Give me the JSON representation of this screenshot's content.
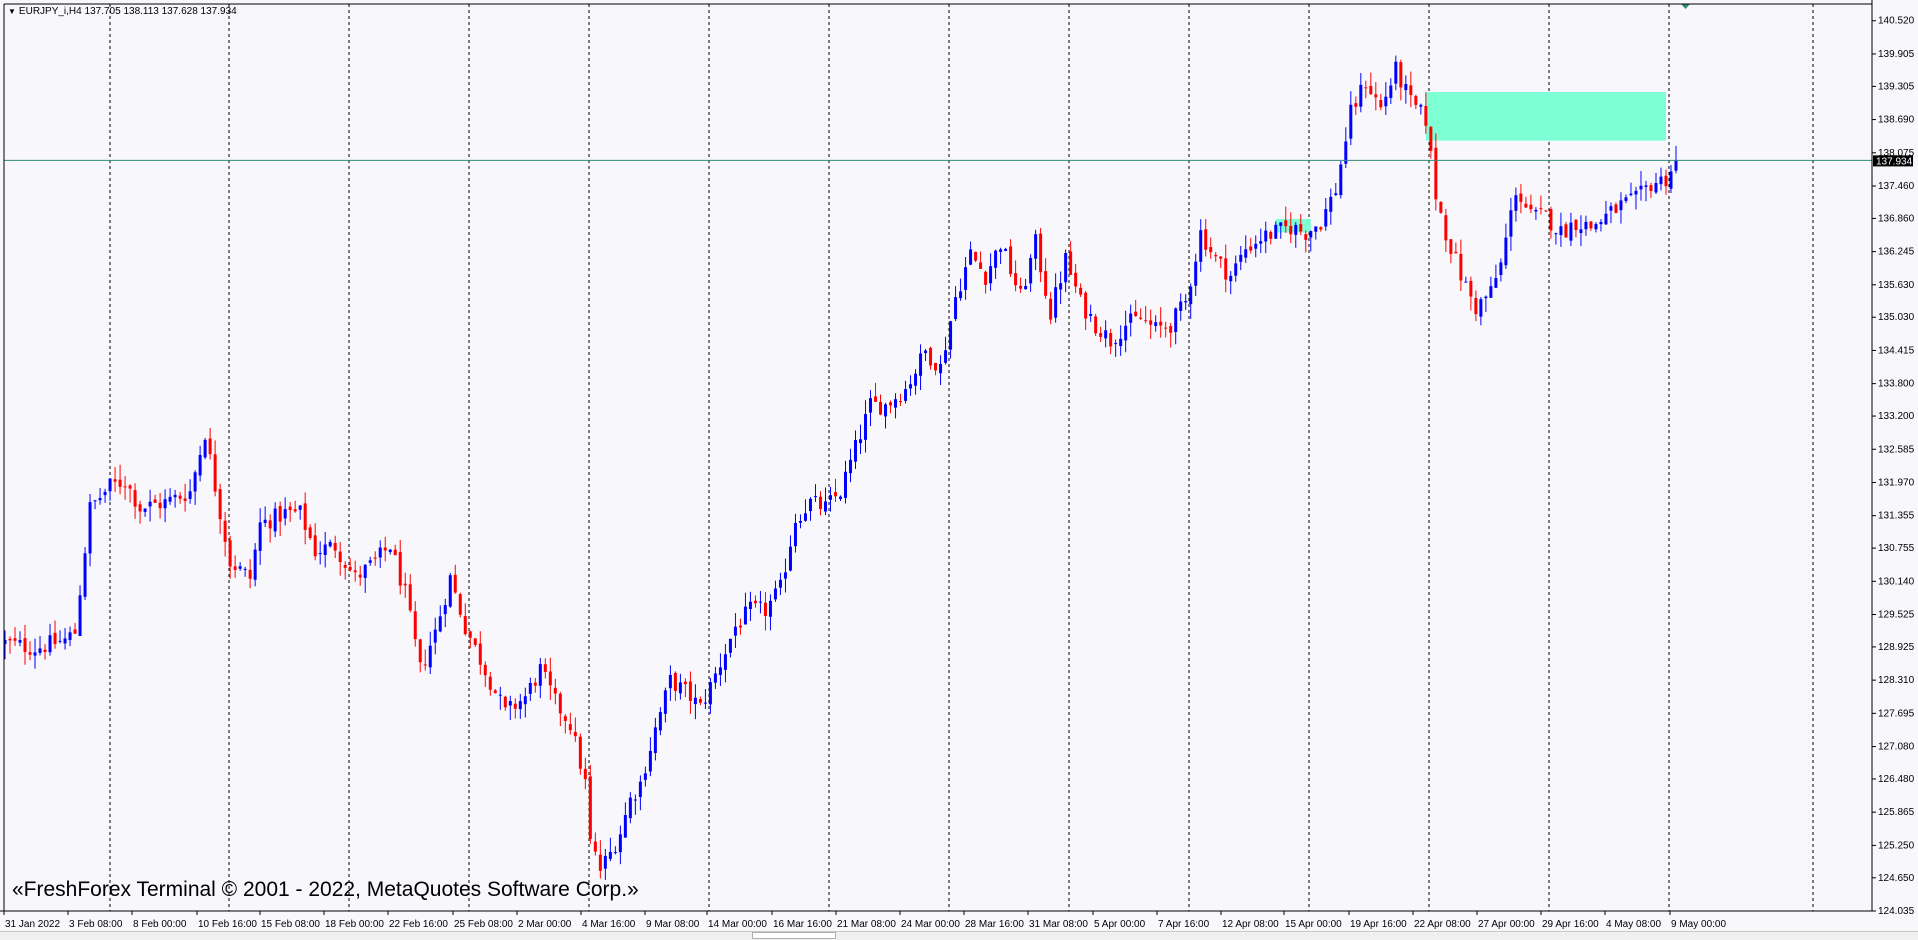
{
  "header": {
    "symbol": "EURJPY_i,H4",
    "ohlc": "137.705 138.113 137.628 137.934"
  },
  "copyright": "«FreshForex Terminal © 2001 - 2022, MetaQuotes Software Corp.»",
  "colors": {
    "background": "#f8f8fc",
    "bull": "#0000ff",
    "bear": "#ff0000",
    "grid": "#000000",
    "price_line": "#2e8b7a",
    "zone": "#7fffd4",
    "price_tag_bg": "#000000"
  },
  "chart_data": {
    "type": "candlestick",
    "symbol": "EURJPY_i",
    "timeframe": "H4",
    "current_price": "137.934",
    "ylim": [
      124.035,
      140.83
    ],
    "y_ticks": [
      "140.520",
      "139.905",
      "139.305",
      "138.690",
      "138.075",
      "137.460",
      "136.860",
      "136.245",
      "135.630",
      "135.030",
      "134.415",
      "133.800",
      "133.200",
      "132.585",
      "131.970",
      "131.355",
      "130.755",
      "130.140",
      "129.525",
      "128.925",
      "128.310",
      "127.695",
      "127.080",
      "126.480",
      "125.865",
      "125.250",
      "124.650",
      "124.035"
    ],
    "x_ticks": [
      "31 Jan 2022",
      "3 Feb 08:00",
      "8 Feb 00:00",
      "10 Feb 16:00",
      "15 Feb 08:00",
      "18 Feb 00:00",
      "22 Feb 16:00",
      "25 Feb 08:00",
      "2 Mar 00:00",
      "4 Mar 16:00",
      "9 Mar 08:00",
      "14 Mar 00:00",
      "16 Mar 16:00",
      "21 Mar 08:00",
      "24 Mar 00:00",
      "28 Mar 16:00",
      "31 Mar 08:00",
      "5 Apr 00:00",
      "7 Apr 16:00",
      "12 Apr 08:00",
      "15 Apr 00:00",
      "19 Apr 16:00",
      "22 Apr 08:00",
      "27 Apr 00:00",
      "29 Apr 16:00",
      "4 May 08:00",
      "9 May 00:00"
    ],
    "anchors": [
      [
        0,
        129.0
      ],
      [
        6,
        128.9
      ],
      [
        12,
        129.05
      ],
      [
        14,
        129.2
      ],
      [
        17,
        131.5
      ],
      [
        21,
        131.9
      ],
      [
        24,
        132.0
      ],
      [
        27,
        131.5
      ],
      [
        32,
        131.6
      ],
      [
        37,
        131.8
      ],
      [
        40,
        132.9
      ],
      [
        42,
        131.9
      ],
      [
        45,
        130.5
      ],
      [
        49,
        130.2
      ],
      [
        51,
        131.2
      ],
      [
        56,
        131.4
      ],
      [
        59,
        131.4
      ],
      [
        62,
        130.7
      ],
      [
        66,
        130.8
      ],
      [
        70,
        130.2
      ],
      [
        74,
        130.5
      ],
      [
        77,
        130.8
      ],
      [
        80,
        129.9
      ],
      [
        83,
        128.5
      ],
      [
        86,
        129.2
      ],
      [
        89,
        130.2
      ],
      [
        92,
        129.3
      ],
      [
        96,
        128.5
      ],
      [
        100,
        127.7
      ],
      [
        104,
        128.0
      ],
      [
        107,
        128.5
      ],
      [
        110,
        127.9
      ],
      [
        113,
        127.5
      ],
      [
        116,
        126.4
      ],
      [
        117,
        125.3
      ],
      [
        119,
        124.8
      ],
      [
        121,
        125.1
      ],
      [
        123,
        125.5
      ],
      [
        125,
        126.1
      ],
      [
        127,
        126.4
      ],
      [
        130,
        127.4
      ],
      [
        133,
        128.3
      ],
      [
        136,
        128.1
      ],
      [
        139,
        127.8
      ],
      [
        142,
        128.4
      ],
      [
        146,
        129.3
      ],
      [
        149,
        129.6
      ],
      [
        152,
        129.6
      ],
      [
        155,
        130.0
      ],
      [
        158,
        131.3
      ],
      [
        161,
        131.6
      ],
      [
        164,
        131.5
      ],
      [
        167,
        131.8
      ],
      [
        170,
        132.6
      ],
      [
        173,
        133.4
      ],
      [
        176,
        133.4
      ],
      [
        180,
        133.7
      ],
      [
        184,
        134.4
      ],
      [
        187,
        134.1
      ],
      [
        190,
        135.4
      ],
      [
        193,
        136.2
      ],
      [
        196,
        135.8
      ],
      [
        199,
        136.4
      ],
      [
        203,
        135.4
      ],
      [
        206,
        136.4
      ],
      [
        209,
        135.1
      ],
      [
        212,
        136.1
      ],
      [
        215,
        135.3
      ],
      [
        218,
        134.9
      ],
      [
        221,
        134.6
      ],
      [
        224,
        134.9
      ],
      [
        227,
        135.0
      ],
      [
        230,
        134.8
      ],
      [
        233,
        134.9
      ],
      [
        236,
        135.3
      ],
      [
        239,
        136.6
      ],
      [
        242,
        136.1
      ],
      [
        245,
        135.8
      ],
      [
        248,
        136.3
      ],
      [
        251,
        136.5
      ],
      [
        254,
        136.6
      ],
      [
        257,
        136.7
      ],
      [
        260,
        136.6
      ],
      [
        263,
        136.8
      ],
      [
        266,
        137.4
      ],
      [
        269,
        138.8
      ],
      [
        272,
        139.4
      ],
      [
        275,
        138.9
      ],
      [
        278,
        139.6
      ],
      [
        281,
        139.0
      ],
      [
        284,
        138.7
      ],
      [
        286,
        137.3
      ],
      [
        288,
        136.6
      ],
      [
        291,
        135.8
      ],
      [
        294,
        135.2
      ],
      [
        297,
        135.5
      ],
      [
        299,
        136.0
      ],
      [
        302,
        137.4
      ],
      [
        305,
        136.9
      ],
      [
        308,
        136.9
      ],
      [
        311,
        136.6
      ],
      [
        314,
        136.8
      ],
      [
        317,
        136.7
      ],
      [
        320,
        136.9
      ],
      [
        323,
        137.1
      ],
      [
        326,
        137.2
      ],
      [
        329,
        137.5
      ],
      [
        332,
        137.6
      ],
      [
        334,
        137.934
      ]
    ],
    "zones": [
      {
        "from_index": 284,
        "to_index": 332,
        "top": 139.2,
        "bottom": 138.3
      },
      {
        "from_index": 254,
        "to_index": 261,
        "top": 136.85,
        "bottom": 136.6
      }
    ]
  }
}
